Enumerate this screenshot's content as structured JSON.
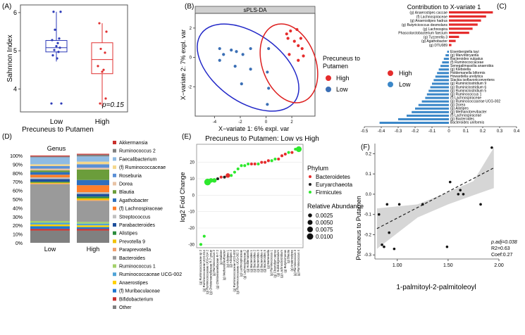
{
  "panels": {
    "A": {
      "tag": "(A)",
      "ylabel": "Sahnnon Index",
      "xlabel": "Precuneus to Putamen",
      "yticks": [
        4,
        5,
        6
      ],
      "pvalue": "p=0.15",
      "colors": {
        "low": "#2d3bb8",
        "high": "#e03030"
      },
      "chart_data": {
        "type": "box",
        "categories": [
          "Low",
          "High"
        ],
        "ylim": [
          3.4,
          6.2
        ],
        "boxes": [
          {
            "name": "Low",
            "q1": 4.97,
            "median": 5.08,
            "q3": 5.27,
            "whisker_low": 4.72,
            "whisker_high": 6.02,
            "points": [
              6.02,
              6.02,
              5.55,
              5.32,
              5.28,
              5.2,
              5.12,
              5.08,
              5.02,
              4.97,
              4.88,
              4.8,
              3.62,
              3.62
            ]
          },
          {
            "name": "High",
            "q1": 4.4,
            "median": 4.77,
            "q3": 5.21,
            "whisker_low": 3.55,
            "whisker_high": 5.72,
            "points": [
              5.72,
              5.5,
              5.05,
              4.95,
              4.6,
              4.5,
              4.45,
              3.75,
              3.62
            ]
          }
        ]
      }
    },
    "B": {
      "tag": "(B)",
      "title": "sPLS-DA",
      "xlabel": "X−variate 1: 6% expl. var",
      "ylabel": "X−variate 2: 7% expl. var",
      "xticks": [
        -4,
        -2,
        0,
        2
      ],
      "yticks": [
        -2,
        0,
        2
      ],
      "legend_title": "Precuneus to Putamen",
      "legend_items": [
        "High",
        "Low"
      ],
      "colors": {
        "High": "#e52c2c",
        "Low": "#3b6fb5",
        "ellipse_low": "#2228c8",
        "ellipse_high": "#dd2020"
      },
      "chart_data": {
        "type": "scatter",
        "xlim": [
          -5.5,
          3.8
        ],
        "ylim": [
          -4,
          3
        ],
        "series": [
          {
            "name": "High",
            "points": [
              [
                1.6,
                1.6
              ],
              [
                1.9,
                1.8
              ],
              [
                2.4,
                1.9
              ],
              [
                1.7,
                1.3
              ],
              [
                2.2,
                1.1
              ],
              [
                2.7,
                1.3
              ],
              [
                2.5,
                0.8
              ],
              [
                2.8,
                0.6
              ],
              [
                1.8,
                0.2
              ],
              [
                2.5,
                -0.2
              ],
              [
                2.9,
                0.1
              ]
            ]
          },
          {
            "name": "Low",
            "points": [
              [
                -3.6,
                0.6
              ],
              [
                -3.3,
                0.2
              ],
              [
                -2.7,
                0.5
              ],
              [
                -2.3,
                0.4
              ],
              [
                -1.8,
                0.2
              ],
              [
                -1.2,
                0.6
              ],
              [
                -3.6,
                -0.2
              ],
              [
                -2.4,
                -0.6
              ],
              [
                -1.2,
                -0.8
              ],
              [
                -1.9,
                -1.8
              ],
              [
                0.2,
                0.6
              ],
              [
                0.1,
                -1.0
              ],
              [
                0.2,
                -2.1
              ],
              [
                0.1,
                -3.2
              ]
            ]
          }
        ]
      }
    },
    "C": {
      "tag": "(C)",
      "title": "Contribution to X-variate 1",
      "legend_items": [
        "High",
        "Low"
      ],
      "xticks": [
        -0.5,
        -0.4,
        -0.3,
        -0.2,
        -0.1,
        0.0,
        0.1,
        0.2,
        0.3,
        0.4
      ],
      "colors": {
        "High": "#e52c2c",
        "Low": "#3b87c8"
      },
      "chart_data": {
        "type": "bar",
        "orientation": "horizontal",
        "xlim": [
          -0.5,
          0.4
        ],
        "high_labels": [
          "(g) Anaerostipes caccae",
          "(f) Lachnospiraceae",
          "(g) Anaerostipes hadrus",
          "(g) Butyricicoccus desmolans",
          "(g) Lachnospira",
          "Phascolarctobacterium faecium",
          "(g) Tyzzerella 3",
          "(g) Agathobacter",
          "(g) DTU089"
        ],
        "high_values": [
          0.26,
          0.22,
          0.19,
          0.17,
          0.14,
          0.12,
          0.06,
          0.04,
          0.015
        ],
        "low_labels": [
          "Eisenbergiella tayi",
          "(g) Marvinbryantia",
          "Bacteroides vulgatus",
          "(f) Ruminococcaceae",
          "Senegalimassilia anaerobia",
          "(g) Klebsiella",
          "Holdemanella biformis",
          "Howardella ureilytica",
          "Slackia isoflavoniconvertens",
          "(g) Ruminiclostridium 9",
          "(g) Ruminiclostridium 6",
          "(g) Ruminiclostridium 5",
          "(g) Ruminococcus 1",
          "(f) Lachnospiraceae",
          "(g) Ruminococcaceae UCG-002",
          "(g) Dorea",
          "(g) Alistipes",
          "(g) Methanobrevibacter",
          "(f) Lachnospiraceae",
          "(g) Bacteroides",
          "Bacteroides uniformis"
        ],
        "low_values": [
          -0.01,
          -0.02,
          -0.03,
          -0.04,
          -0.05,
          -0.06,
          -0.07,
          -0.08,
          -0.09,
          -0.1,
          -0.11,
          -0.12,
          -0.13,
          -0.14,
          -0.16,
          -0.18,
          -0.2,
          -0.22,
          -0.25,
          -0.3,
          -0.41
        ]
      }
    },
    "D": {
      "tag": "(D)",
      "title": "Genus",
      "yticks": [
        "0%",
        "10%",
        "20%",
        "30%",
        "40%",
        "50%",
        "60%",
        "70%",
        "80%",
        "90%",
        "100%"
      ],
      "legend_colors": [
        "#808080",
        "#c9302c",
        "#1f77d0",
        "#ffd100",
        "#4fa4d8",
        "#a4d16b",
        "#9a9a9a",
        "#f0a070",
        "#f2c200",
        "#2b8c3c",
        "#1e4f9c",
        "#c0c0c0",
        "#ff7f2a",
        "#2e6fbe",
        "#6b9d3b",
        "#e8c3a6",
        "#5a8fd6",
        "#f4d78c",
        "#8fbbe3"
      ],
      "chart_data": {
        "type": "bar",
        "stacked": true,
        "categories": [
          "Low",
          "High"
        ],
        "ylim": [
          0,
          100
        ],
        "series": [
          {
            "name": "Akkermansia",
            "values": [
              1,
              1
            ]
          },
          {
            "name": "Ruminococcus 2",
            "values": [
              1,
              2
            ]
          },
          {
            "name": "Faecalibacterium",
            "values": [
              8,
              6
            ]
          },
          {
            "name": "(f) Ruminococcaceae",
            "values": [
              2,
              3
            ]
          },
          {
            "name": "Roseburia",
            "values": [
              3,
              4
            ]
          },
          {
            "name": "Dorea",
            "values": [
              2,
              2
            ]
          },
          {
            "name": "Blautia",
            "values": [
              2,
              12
            ]
          },
          {
            "name": "Agathobacter",
            "values": [
              3,
              6
            ]
          },
          {
            "name": "(f) Lachnospiraceae",
            "values": [
              3,
              8
            ]
          },
          {
            "name": "Streptococcus",
            "values": [
              2,
              2
            ]
          },
          {
            "name": "Parabacteroides",
            "values": [
              3,
              3
            ]
          },
          {
            "name": "Alistipes",
            "values": [
              1,
              2
            ]
          },
          {
            "name": "Prevotella 9",
            "values": [
              1,
              2
            ]
          },
          {
            "name": "Paraprevotella",
            "values": [
              1,
              1
            ]
          },
          {
            "name": "Bacteroides",
            "values": [
              42,
              24
            ]
          },
          {
            "name": "Ruminococcus 1",
            "values": [
              2,
              2
            ]
          },
          {
            "name": "Ruminococcaceae UCG-002",
            "values": [
              2,
              2
            ]
          },
          {
            "name": "Anaerostipes",
            "values": [
              2,
              2
            ]
          },
          {
            "name": "(f) Muribaculaceae",
            "values": [
              3,
              2
            ]
          },
          {
            "name": "Bifidobacterium",
            "values": [
              2,
              2
            ]
          },
          {
            "name": "Other",
            "values": [
              14,
              14
            ]
          }
        ]
      }
    },
    "E": {
      "tag": "(E)",
      "title": "Precuneus to Putamen: Low vs High",
      "ylabel": "log2 Fold Change",
      "yticks": [
        -30,
        -20,
        -10,
        0,
        10,
        20
      ],
      "phylum_title": "Phylum",
      "phylum_items": [
        "Bacteroidetes",
        "Euryarchaeota",
        "Firmicutes"
      ],
      "abundance_title": "Relative Abundance",
      "abundance_items": [
        "0.0025",
        "0.0050",
        "0.0075",
        "0.0100"
      ],
      "colors": {
        "Bacteroidetes": "#e52c2c",
        "Euryarchaeota": "#222222",
        "Firmicutes": "#2ee82e"
      },
      "chart_data": {
        "type": "scatter",
        "ylim": [
          -32,
          31
        ],
        "taxa": [
          "(g) Ruminococcaceae sp 2",
          "(g) Ruminococcaceae UCG-014",
          "(g) Ruminococcaceae UCG-014 2",
          "(g) Christensenellaceae R-7 group",
          "(g) Ruminococcus 2",
          "(g) Christensenellaceae R-7 2",
          "(g) Dialister",
          "(g) Methanobrevibacter",
          "(g) Alistipes 1",
          "(g) Alistipes 2",
          "(g) Ruminococcaceae UCG-002",
          "(g) Ruminococcaceae UCG-002 2",
          "(g) Lachnospiraceae",
          "(g) Lachnospiraceae 2",
          "(g) Holdemanella",
          "(g) Bacteroides 1",
          "(g) Bacteroides 2",
          "(g) Bacteroides 3",
          "(g) Bacteroides 4",
          "(g) Bacteroides 5",
          "(g) Barnesiella",
          "(g) Ruminococcus 1",
          "(g) Clostridium sensu",
          "(g) Subdoligranulum",
          "(g) Lachnoclostridium",
          "(g) Butyricimonas",
          "(g) Blautia",
          "(g) Anaerostipes",
          "(g) Ruminococcus 3",
          "(g) Ruminococcus 4"
        ],
        "values": [
          -30,
          -25,
          8,
          9,
          9,
          10,
          11,
          11,
          12,
          12,
          14,
          16,
          18,
          18,
          19,
          19,
          19,
          19,
          20,
          20,
          21,
          21,
          22,
          22,
          24,
          25,
          26,
          26,
          28,
          28
        ],
        "phylum": [
          "Firmicutes",
          "Firmicutes",
          "Firmicutes",
          "Firmicutes",
          "Firmicutes",
          "Euryarchaeota",
          "Bacteroidetes",
          "Euryarchaeota",
          "Bacteroidetes",
          "Firmicutes",
          "Firmicutes",
          "Firmicutes",
          "Firmicutes",
          "Firmicutes",
          "Firmicutes",
          "Bacteroidetes",
          "Bacteroidetes",
          "Firmicutes",
          "Bacteroidetes",
          "Bacteroidetes",
          "Bacteroidetes",
          "Firmicutes",
          "Firmicutes",
          "Bacteroidetes",
          "Bacteroidetes",
          "Bacteroidetes",
          "Firmicutes",
          "Bacteroidetes",
          "Firmicutes",
          "Firmicutes"
        ],
        "abundance": [
          0.0005,
          0.0005,
          0.0075,
          0.0025,
          0.0025,
          0.0005,
          0.0005,
          0.0005,
          0.0025,
          0.0005,
          0.0005,
          0.0005,
          0.0005,
          0.0005,
          0.0005,
          0.0005,
          0.0005,
          0.0005,
          0.0005,
          0.0005,
          0.0005,
          0.0005,
          0.0005,
          0.0005,
          0.0005,
          0.0005,
          0.0005,
          0.0005,
          0.0005,
          0.005
        ]
      }
    },
    "F": {
      "tag": "(F)",
      "xlabel": "1-palmitoyl-2-palmitoleoyl",
      "ylabel": "Precuneus to Putamen",
      "xticks": [
        1.0,
        1.5,
        2.0
      ],
      "yticks": [
        -0.3,
        -0.2,
        -0.1,
        0.0,
        0.1,
        0.2
      ],
      "stats": [
        "p.adj=0.038",
        "R2=0.63",
        "Coef:0.27"
      ],
      "chart_data": {
        "type": "scatter",
        "xlim": [
          0.78,
          2.0
        ],
        "ylim": [
          -0.32,
          0.25
        ],
        "points": [
          [
            0.82,
            -0.1
          ],
          [
            0.85,
            -0.25
          ],
          [
            0.87,
            -0.26
          ],
          [
            0.9,
            -0.05
          ],
          [
            0.92,
            -0.19
          ],
          [
            0.97,
            -0.27
          ],
          [
            1.02,
            -0.05
          ],
          [
            1.25,
            -0.05
          ],
          [
            1.49,
            -0.26
          ],
          [
            1.52,
            0.06
          ],
          [
            1.6,
            0.0
          ],
          [
            1.62,
            0.02
          ],
          [
            1.65,
            0.0
          ],
          [
            1.82,
            -0.05
          ],
          [
            1.93,
            0.23
          ]
        ],
        "fit": {
          "x": [
            0.8,
            1.95
          ],
          "y": [
            -0.17,
            0.13
          ]
        }
      }
    }
  }
}
